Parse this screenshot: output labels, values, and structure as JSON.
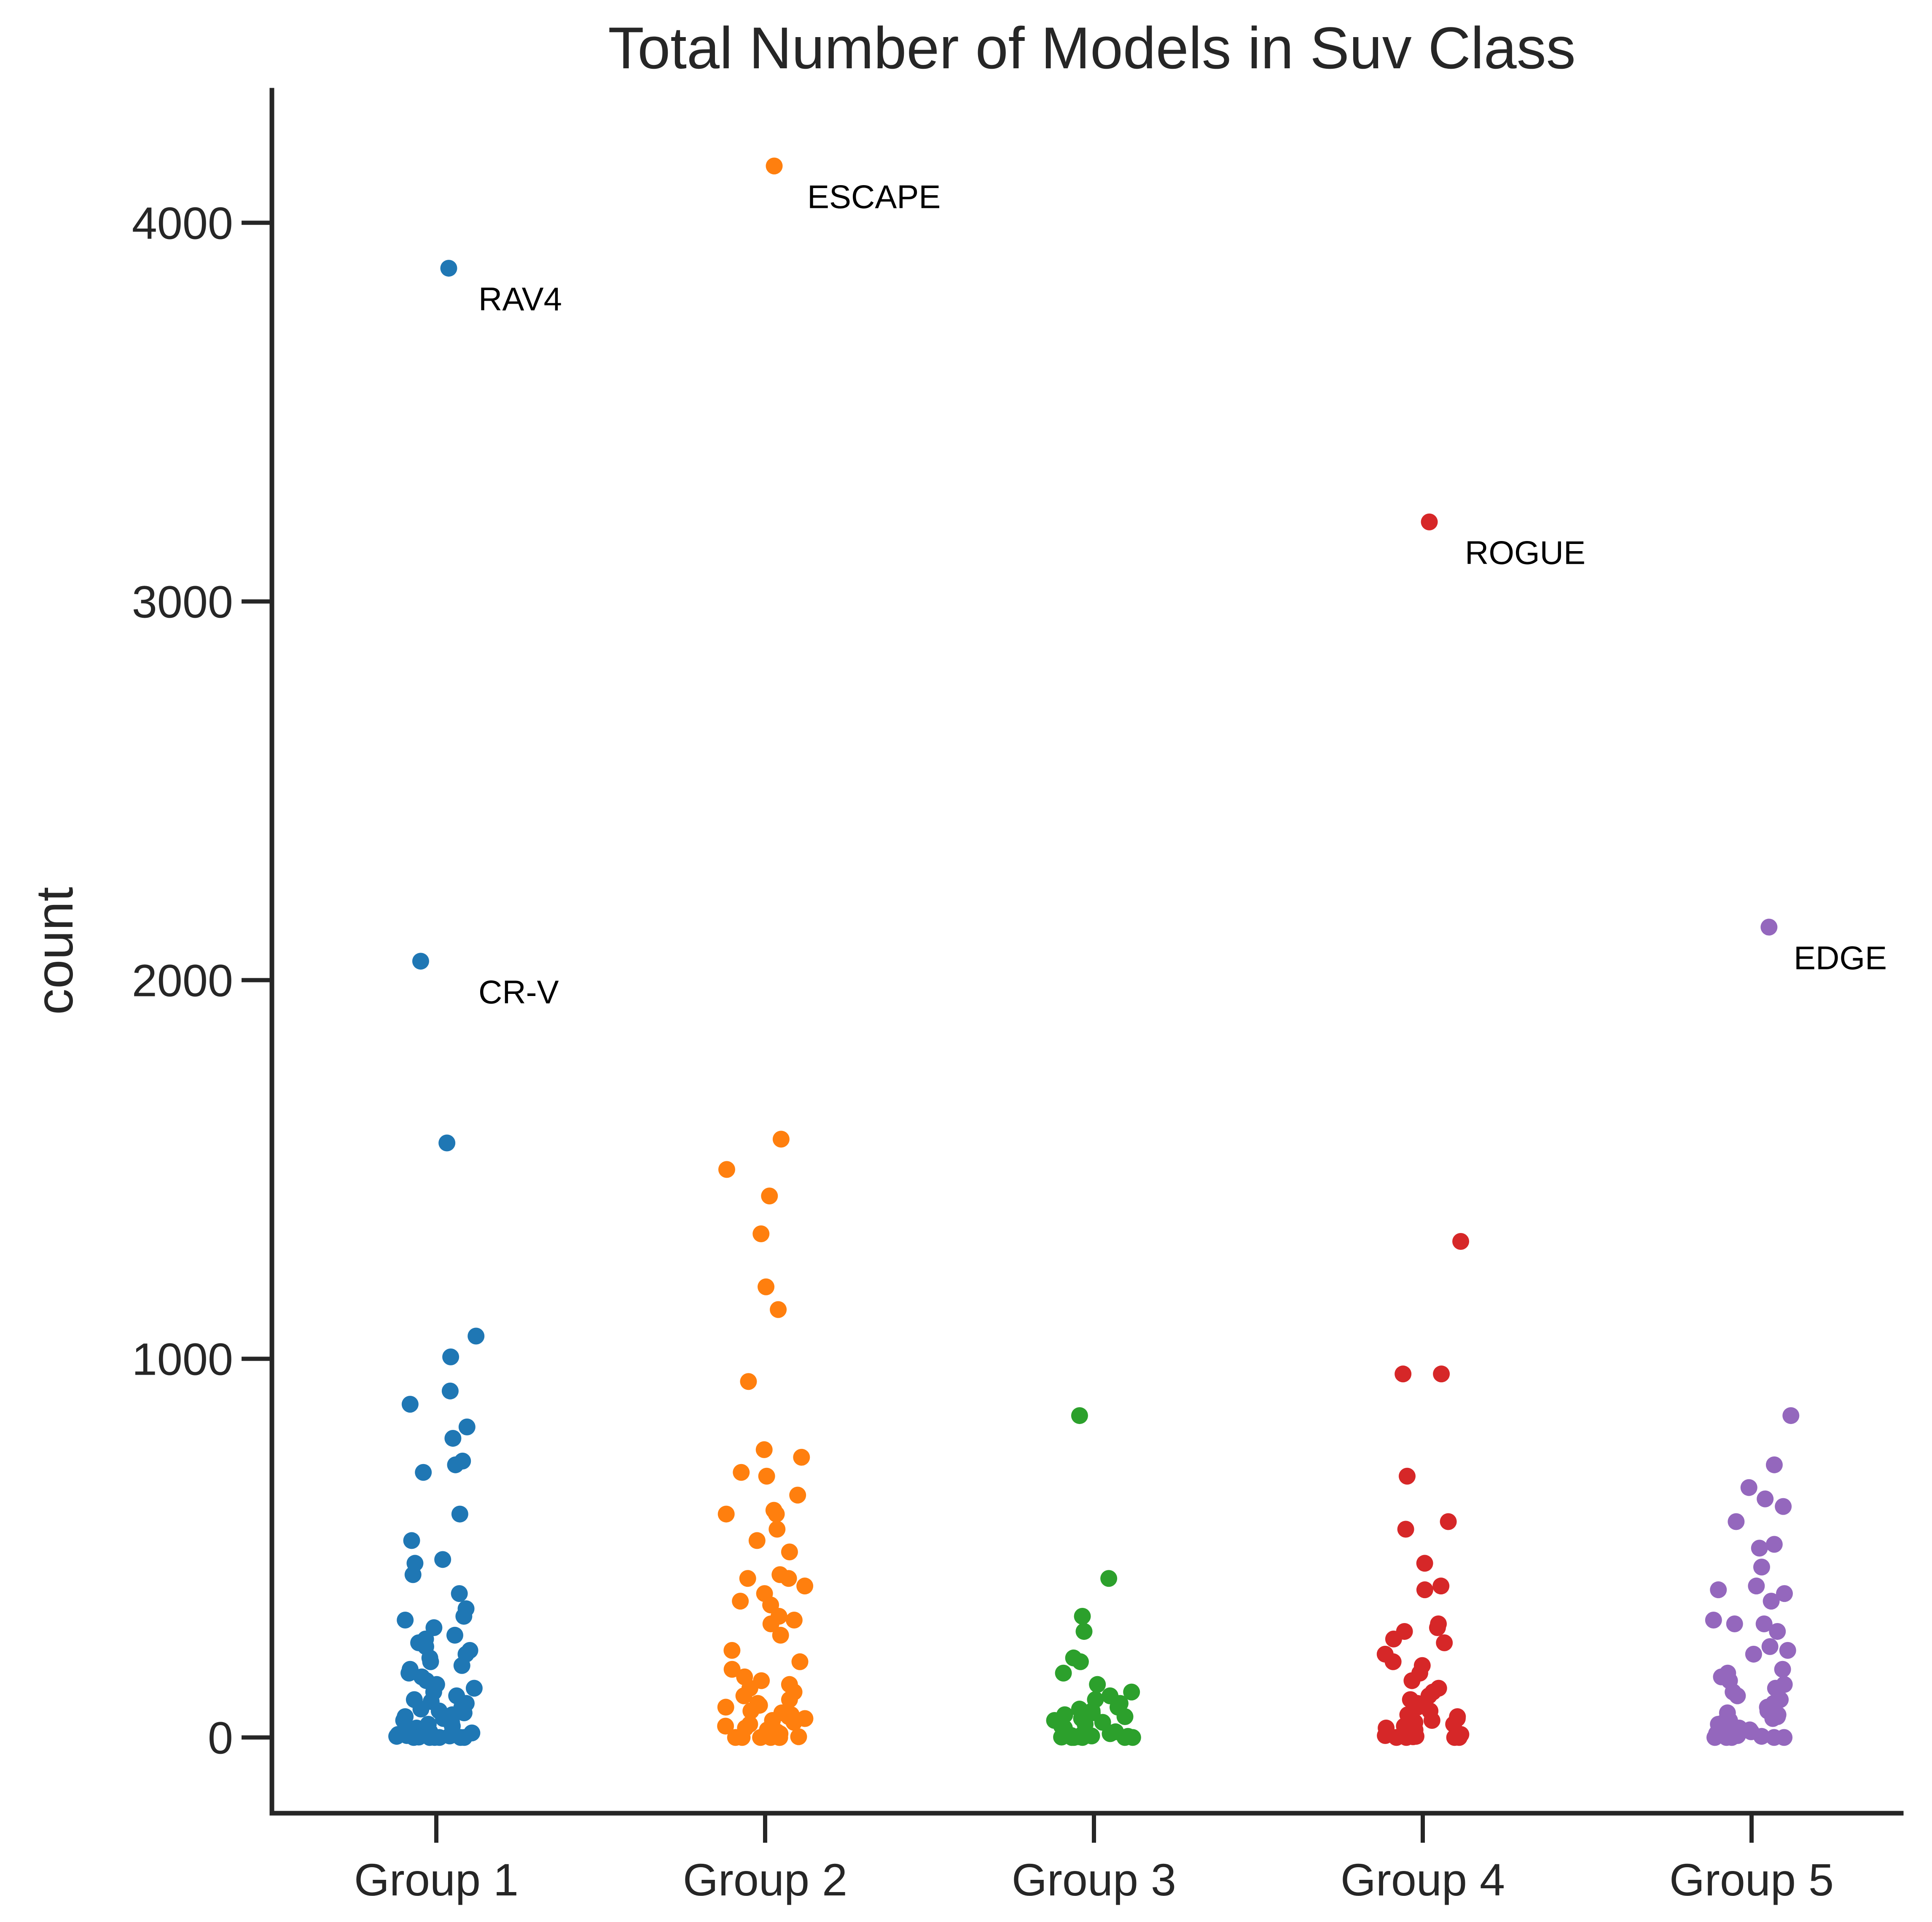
{
  "chart_data": {
    "type": "scatter",
    "subtype": "strip",
    "title": "Total Number of Models in Suv Class",
    "xlabel": "",
    "ylabel": "count",
    "ylim": [
      -200,
      4350
    ],
    "yticks": [
      0,
      1000,
      2000,
      3000,
      4000
    ],
    "grid": false,
    "legend": "none",
    "categories": [
      "Group 1",
      "Group 2",
      "Group 3",
      "Group 4",
      "Group 5"
    ],
    "series": [
      {
        "category": "Group 1",
        "color": "#1f77b4",
        "values": [
          3880,
          2050,
          1570,
          1060,
          1005,
          915,
          880,
          820,
          790,
          730,
          720,
          700,
          590,
          520,
          470,
          460,
          430,
          380,
          340,
          320,
          310,
          290,
          270,
          260,
          250,
          240,
          230,
          220,
          210,
          200,
          190,
          180,
          170,
          160,
          150,
          140,
          130,
          120,
          110,
          100,
          95,
          90,
          80,
          75,
          70,
          65,
          60,
          55,
          50,
          45,
          40,
          35,
          30,
          25,
          20,
          18,
          15,
          12,
          10,
          8,
          6,
          5,
          4,
          3,
          2,
          1,
          0,
          0,
          0,
          0,
          0,
          0
        ]
      },
      {
        "category": "Group 2",
        "color": "#ff7f0e",
        "values": [
          4150,
          1580,
          1500,
          1430,
          1330,
          1190,
          1130,
          940,
          760,
          740,
          700,
          690,
          640,
          600,
          590,
          590,
          550,
          520,
          490,
          430,
          420,
          420,
          400,
          380,
          360,
          350,
          320,
          310,
          300,
          270,
          230,
          200,
          180,
          160,
          150,
          140,
          130,
          120,
          110,
          100,
          90,
          85,
          80,
          70,
          65,
          60,
          55,
          50,
          45,
          40,
          35,
          30,
          25,
          20,
          15,
          10,
          8,
          5,
          3,
          2,
          0,
          0,
          0,
          0,
          0,
          0
        ]
      },
      {
        "category": "Group 3",
        "color": "#2ca02c",
        "values": [
          850,
          420,
          320,
          280,
          210,
          200,
          170,
          140,
          120,
          110,
          100,
          90,
          80,
          75,
          70,
          65,
          60,
          55,
          50,
          45,
          40,
          35,
          30,
          25,
          20,
          18,
          15,
          12,
          10,
          8,
          5,
          4,
          3,
          2,
          1,
          0,
          0,
          0,
          0,
          0
        ]
      },
      {
        "category": "Group 4",
        "color": "#d62728",
        "values": [
          3210,
          1310,
          960,
          960,
          690,
          570,
          550,
          460,
          400,
          390,
          300,
          290,
          280,
          260,
          250,
          220,
          200,
          190,
          170,
          150,
          130,
          120,
          110,
          100,
          90,
          80,
          70,
          60,
          55,
          50,
          45,
          40,
          35,
          30,
          25,
          20,
          15,
          10,
          8,
          5,
          3,
          2,
          0,
          0,
          0,
          0
        ]
      },
      {
        "category": "Group 5",
        "color": "#9467bd",
        "values": [
          2140,
          850,
          720,
          660,
          630,
          610,
          570,
          510,
          500,
          450,
          400,
          390,
          380,
          360,
          310,
          300,
          300,
          280,
          240,
          230,
          220,
          180,
          170,
          160,
          150,
          140,
          130,
          120,
          110,
          100,
          90,
          80,
          70,
          65,
          60,
          55,
          50,
          45,
          40,
          35,
          30,
          25,
          20,
          15,
          10,
          5,
          3,
          0,
          0,
          0,
          0,
          0
        ]
      }
    ],
    "annotations": [
      {
        "text": "RAV4",
        "category": "Group 1",
        "value": 3880
      },
      {
        "text": "CR-V",
        "category": "Group 1",
        "value": 2050
      },
      {
        "text": "ESCAPE",
        "category": "Group 2",
        "value": 4150
      },
      {
        "text": "ROGUE",
        "category": "Group 4",
        "value": 3210
      },
      {
        "text": "EDGE",
        "category": "Group 5",
        "value": 2140
      }
    ]
  }
}
